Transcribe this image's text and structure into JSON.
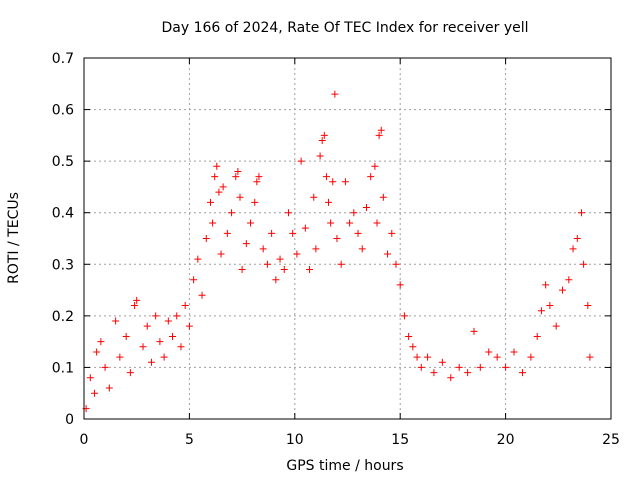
{
  "chart_data": {
    "type": "scatter",
    "title": "Day 166 of 2024, Rate Of TEC Index for receiver yell",
    "xlabel": "GPS time / hours",
    "ylabel": "ROTI / TECUs",
    "xlim": [
      0,
      25
    ],
    "ylim": [
      0,
      0.7
    ],
    "xticks": [
      0,
      5,
      10,
      15,
      20,
      25
    ],
    "yticks": [
      0,
      0.1,
      0.2,
      0.3,
      0.4,
      0.5,
      0.6,
      0.7
    ],
    "xtick_labels": [
      "0",
      "5",
      "10",
      "15",
      "20",
      "25"
    ],
    "ytick_labels": [
      "0",
      "0.1",
      "0.2",
      "0.3",
      "0.4",
      "0.5",
      "0.6",
      "0.7"
    ],
    "grid": true,
    "marker": "+",
    "color": "#ff0000",
    "series": [
      {
        "name": "ROTI",
        "points": [
          [
            0.1,
            0.02
          ],
          [
            0.3,
            0.08
          ],
          [
            0.5,
            0.05
          ],
          [
            0.6,
            0.13
          ],
          [
            0.8,
            0.15
          ],
          [
            1.0,
            0.1
          ],
          [
            1.2,
            0.06
          ],
          [
            1.5,
            0.19
          ],
          [
            1.7,
            0.12
          ],
          [
            2.0,
            0.16
          ],
          [
            2.2,
            0.09
          ],
          [
            2.4,
            0.22
          ],
          [
            2.5,
            0.23
          ],
          [
            2.8,
            0.14
          ],
          [
            3.0,
            0.18
          ],
          [
            3.2,
            0.11
          ],
          [
            3.4,
            0.2
          ],
          [
            3.6,
            0.15
          ],
          [
            3.8,
            0.12
          ],
          [
            4.0,
            0.19
          ],
          [
            4.2,
            0.16
          ],
          [
            4.4,
            0.2
          ],
          [
            4.6,
            0.14
          ],
          [
            4.8,
            0.22
          ],
          [
            5.0,
            0.18
          ],
          [
            5.2,
            0.27
          ],
          [
            5.4,
            0.31
          ],
          [
            5.6,
            0.24
          ],
          [
            5.8,
            0.35
          ],
          [
            6.0,
            0.42
          ],
          [
            6.1,
            0.38
          ],
          [
            6.2,
            0.47
          ],
          [
            6.3,
            0.49
          ],
          [
            6.4,
            0.44
          ],
          [
            6.5,
            0.32
          ],
          [
            6.6,
            0.45
          ],
          [
            6.8,
            0.36
          ],
          [
            7.0,
            0.4
          ],
          [
            7.2,
            0.47
          ],
          [
            7.3,
            0.48
          ],
          [
            7.4,
            0.43
          ],
          [
            7.5,
            0.29
          ],
          [
            7.7,
            0.34
          ],
          [
            7.9,
            0.38
          ],
          [
            8.1,
            0.42
          ],
          [
            8.2,
            0.46
          ],
          [
            8.3,
            0.47
          ],
          [
            8.5,
            0.33
          ],
          [
            8.7,
            0.3
          ],
          [
            8.9,
            0.36
          ],
          [
            9.1,
            0.27
          ],
          [
            9.3,
            0.31
          ],
          [
            9.5,
            0.29
          ],
          [
            9.7,
            0.4
          ],
          [
            9.9,
            0.36
          ],
          [
            10.1,
            0.32
          ],
          [
            10.3,
            0.5
          ],
          [
            10.5,
            0.37
          ],
          [
            10.7,
            0.29
          ],
          [
            10.9,
            0.43
          ],
          [
            11.0,
            0.33
          ],
          [
            11.2,
            0.51
          ],
          [
            11.3,
            0.54
          ],
          [
            11.4,
            0.55
          ],
          [
            11.5,
            0.47
          ],
          [
            11.6,
            0.42
          ],
          [
            11.7,
            0.38
          ],
          [
            11.8,
            0.46
          ],
          [
            11.9,
            0.63
          ],
          [
            12.0,
            0.35
          ],
          [
            12.2,
            0.3
          ],
          [
            12.4,
            0.46
          ],
          [
            12.6,
            0.38
          ],
          [
            12.8,
            0.4
          ],
          [
            13.0,
            0.36
          ],
          [
            13.2,
            0.33
          ],
          [
            13.4,
            0.41
          ],
          [
            13.6,
            0.47
          ],
          [
            13.8,
            0.49
          ],
          [
            13.9,
            0.38
          ],
          [
            14.0,
            0.55
          ],
          [
            14.1,
            0.56
          ],
          [
            14.2,
            0.43
          ],
          [
            14.4,
            0.32
          ],
          [
            14.6,
            0.36
          ],
          [
            14.8,
            0.3
          ],
          [
            15.0,
            0.26
          ],
          [
            15.2,
            0.2
          ],
          [
            15.4,
            0.16
          ],
          [
            15.6,
            0.14
          ],
          [
            15.8,
            0.12
          ],
          [
            16.0,
            0.1
          ],
          [
            16.3,
            0.12
          ],
          [
            16.6,
            0.09
          ],
          [
            17.0,
            0.11
          ],
          [
            17.4,
            0.08
          ],
          [
            17.8,
            0.1
          ],
          [
            18.2,
            0.09
          ],
          [
            18.5,
            0.17
          ],
          [
            18.8,
            0.1
          ],
          [
            19.2,
            0.13
          ],
          [
            19.6,
            0.12
          ],
          [
            20.0,
            0.1
          ],
          [
            20.4,
            0.13
          ],
          [
            20.8,
            0.09
          ],
          [
            21.2,
            0.12
          ],
          [
            21.5,
            0.16
          ],
          [
            21.7,
            0.21
          ],
          [
            21.9,
            0.26
          ],
          [
            22.1,
            0.22
          ],
          [
            22.4,
            0.18
          ],
          [
            22.7,
            0.25
          ],
          [
            23.0,
            0.27
          ],
          [
            23.2,
            0.33
          ],
          [
            23.4,
            0.35
          ],
          [
            23.6,
            0.4
          ],
          [
            23.7,
            0.3
          ],
          [
            23.9,
            0.22
          ],
          [
            24.0,
            0.12
          ]
        ]
      }
    ]
  }
}
